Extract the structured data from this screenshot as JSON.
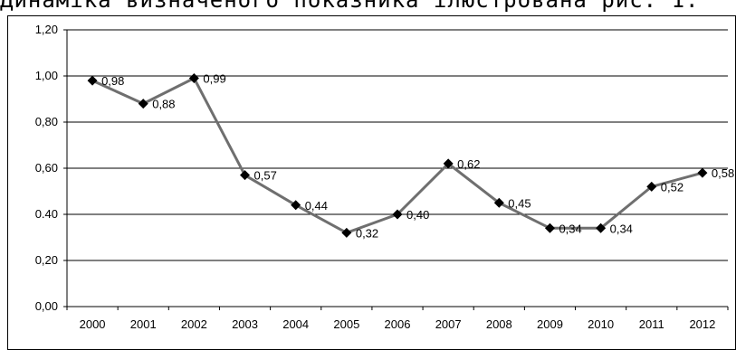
{
  "caption": "Динаміка визначеного показника ілюстрована рис. 1.",
  "chart_data": {
    "type": "line",
    "x": [
      "2000",
      "2001",
      "2002",
      "2003",
      "2004",
      "2005",
      "2006",
      "2007",
      "2008",
      "2009",
      "2010",
      "2011",
      "2012"
    ],
    "series": [
      {
        "values": [
          0.98,
          0.88,
          0.99,
          0.57,
          0.44,
          0.32,
          0.4,
          0.62,
          0.45,
          0.34,
          0.34,
          0.52,
          0.58
        ]
      }
    ],
    "data_labels": [
      "0,98",
      "0,88",
      "0,99",
      "0,57",
      "0,44",
      "0,32",
      "0,40",
      "0,62",
      "0,45",
      "0,34",
      "0,34",
      "0,52",
      "0,58"
    ],
    "y_ticks": [
      "0,00",
      "0,20",
      "0.40",
      "0,60",
      "0,80",
      "1,00",
      "1,20"
    ],
    "ylim": [
      0,
      1.2
    ],
    "grid": true,
    "marker": "diamond",
    "line_color": "#6f6f6f",
    "marker_color": "#000000"
  }
}
